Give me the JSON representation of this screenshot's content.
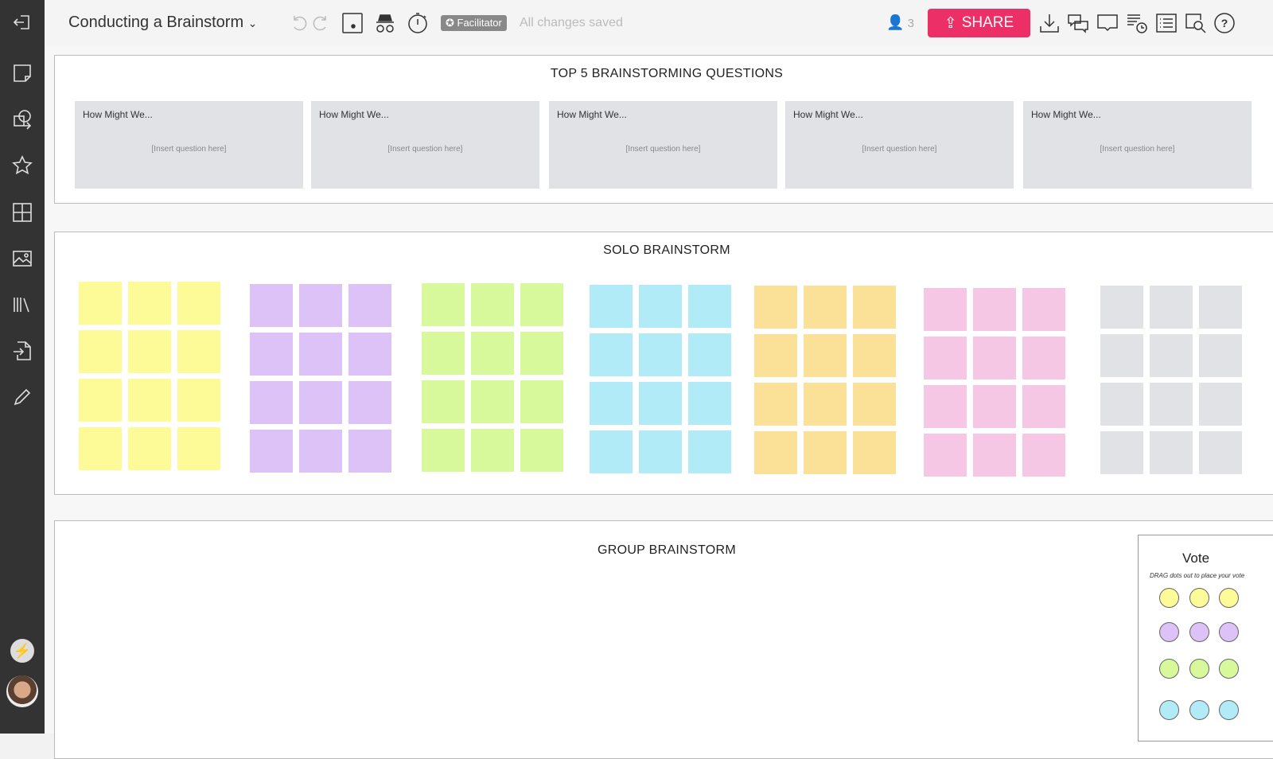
{
  "header": {
    "title": "Conducting a Brainstorm",
    "facilitator_badge": "Facilitator",
    "save_status": "All changes saved",
    "user_count": "3",
    "share_label": "SHARE"
  },
  "sidebar": {
    "icons": [
      "exit-icon",
      "sticky-note-icon",
      "shapes-icon",
      "favorites-icon",
      "templates-icon",
      "image-icon",
      "library-icon",
      "import-icon",
      "pen-icon",
      "lightning-icon",
      "avatar"
    ]
  },
  "frames": {
    "questions": {
      "title": "TOP 5 BRAINSTORMING QUESTIONS",
      "cards": [
        {
          "heading": "How Might We...",
          "placeholder": "[Insert question here]"
        },
        {
          "heading": "How Might We...",
          "placeholder": "[Insert question here]"
        },
        {
          "heading": "How Might We...",
          "placeholder": "[Insert question here]"
        },
        {
          "heading": "How Might We...",
          "placeholder": "[Insert question here]"
        },
        {
          "heading": "How Might We...",
          "placeholder": "[Insert question here]"
        }
      ]
    },
    "solo": {
      "title": "SOLO BRAINSTORM",
      "colors": [
        "#fdfb97",
        "#dcc2f6",
        "#d7f99b",
        "#b2ebf8",
        "#fbe197",
        "#f5c7e5",
        "#e0e2e6"
      ]
    },
    "group": {
      "title": "GROUP BRAINSTORM"
    }
  },
  "vote": {
    "title": "Vote",
    "instruction": "DRAG dots out to place your vote",
    "dot_colors": [
      "#fdfb97",
      "#dcc2f6",
      "#d7f99b",
      "#b2ebf8"
    ]
  },
  "colors": {
    "share": "#ec2f66",
    "sidebar": "#333333"
  }
}
